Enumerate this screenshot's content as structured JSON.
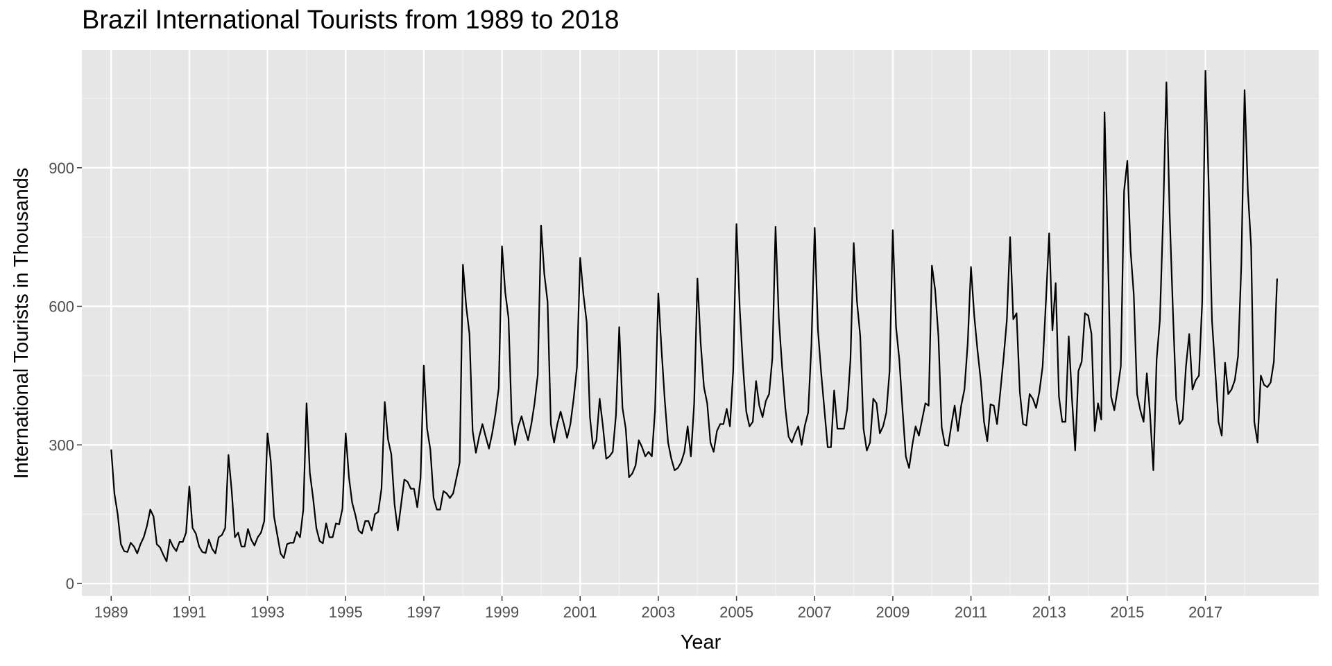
{
  "chart_data": {
    "type": "line",
    "title": "Brazil International Tourists from 1989 to 2018",
    "xlabel": "Year",
    "ylabel": "International Tourists in Thousands",
    "xlim": [
      1988.25,
      2019.9
    ],
    "ylim": [
      -27,
      1155
    ],
    "x_ticks": [
      1989,
      1991,
      1993,
      1995,
      1997,
      1999,
      2001,
      2003,
      2005,
      2007,
      2009,
      2011,
      2013,
      2015,
      2017
    ],
    "x_tick_labels": [
      "1989",
      "1991",
      "1993",
      "1995",
      "1997",
      "1999",
      "2001",
      "2003",
      "2005",
      "2007",
      "2009",
      "2011",
      "2013",
      "2015",
      "2017"
    ],
    "y_ticks": [
      0,
      300,
      600,
      900
    ],
    "y_tick_labels": [
      "0",
      "300",
      "600",
      "900"
    ],
    "grid": true,
    "legend": "none",
    "series": [
      {
        "x_start": 1989,
        "frequency": "monthly",
        "values": [
          290,
          195,
          150,
          85,
          70,
          68,
          88,
          80,
          65,
          85,
          100,
          125,
          160,
          145,
          85,
          78,
          62,
          48,
          95,
          80,
          70,
          90,
          90,
          110,
          210,
          120,
          108,
          80,
          68,
          66,
          95,
          75,
          65,
          100,
          105,
          120,
          278,
          200,
          100,
          110,
          80,
          80,
          118,
          95,
          82,
          100,
          110,
          135,
          325,
          265,
          145,
          105,
          65,
          55,
          85,
          88,
          88,
          112,
          100,
          160,
          390,
          240,
          185,
          120,
          92,
          87,
          130,
          100,
          100,
          130,
          128,
          162,
          325,
          230,
          175,
          148,
          115,
          108,
          135,
          135,
          115,
          150,
          155,
          205,
          393,
          312,
          280,
          172,
          115,
          170,
          225,
          220,
          205,
          205,
          165,
          228,
          472,
          335,
          290,
          185,
          160,
          160,
          200,
          195,
          185,
          195,
          228,
          262,
          690,
          600,
          540,
          330,
          283,
          318,
          345,
          318,
          292,
          325,
          368,
          423,
          730,
          630,
          575,
          350,
          300,
          340,
          362,
          335,
          310,
          345,
          390,
          452,
          775,
          670,
          610,
          345,
          305,
          345,
          372,
          345,
          315,
          345,
          400,
          468,
          705,
          625,
          565,
          360,
          292,
          310,
          400,
          340,
          270,
          275,
          285,
          365,
          555,
          380,
          335,
          230,
          238,
          255,
          310,
          295,
          275,
          285,
          275,
          375,
          628,
          505,
          395,
          305,
          270,
          245,
          250,
          262,
          285,
          340,
          275,
          390,
          660,
          520,
          425,
          390,
          305,
          285,
          330,
          345,
          345,
          378,
          340,
          462,
          778,
          595,
          470,
          372,
          340,
          350,
          438,
          385,
          360,
          395,
          410,
          488,
          772,
          575,
          470,
          380,
          318,
          305,
          325,
          340,
          300,
          342,
          370,
          515,
          770,
          550,
          455,
          375,
          295,
          295,
          418,
          335,
          335,
          335,
          378,
          485,
          737,
          610,
          535,
          335,
          288,
          305,
          400,
          390,
          325,
          340,
          370,
          460,
          765,
          555,
          485,
          375,
          275,
          250,
          300,
          340,
          320,
          355,
          390,
          385,
          688,
          635,
          535,
          338,
          300,
          298,
          345,
          385,
          330,
          385,
          420,
          520,
          685,
          580,
          505,
          440,
          350,
          308,
          388,
          385,
          345,
          415,
          488,
          570,
          750,
          572,
          585,
          415,
          345,
          342,
          410,
          400,
          380,
          415,
          470,
          610,
          758,
          548,
          650,
          405,
          350,
          350,
          535,
          400,
          288,
          460,
          480,
          585,
          580,
          540,
          330,
          390,
          355,
          1020,
          730,
          405,
          375,
          420,
          470,
          850,
          915,
          720,
          625,
          410,
          375,
          350,
          455,
          365,
          245,
          485,
          570,
          795,
          1085,
          800,
          590,
          400,
          345,
          355,
          470,
          540,
          420,
          440,
          450,
          610,
          1110,
          860,
          570,
          460,
          350,
          320,
          478,
          410,
          420,
          440,
          492,
          690,
          1068,
          850,
          730,
          350,
          305,
          450,
          430,
          425,
          435,
          480,
          660
        ]
      }
    ]
  }
}
